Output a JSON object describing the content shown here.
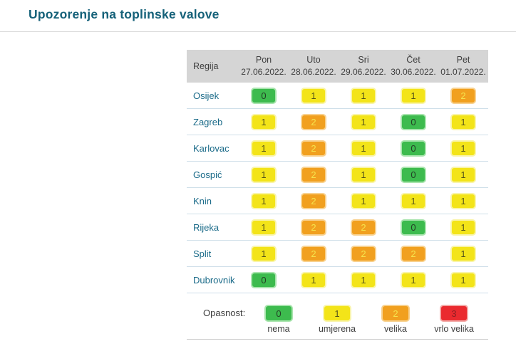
{
  "page": {
    "title": "Upozorenje na toplinske valove"
  },
  "chart_data": {
    "type": "heatmap",
    "title": "Upozorenje na toplinske valove",
    "row_header_label": "Regija",
    "columns": [
      {
        "day": "Pon",
        "date": "27.06.2022."
      },
      {
        "day": "Uto",
        "date": "28.06.2022."
      },
      {
        "day": "Sri",
        "date": "29.06.2022."
      },
      {
        "day": "Čet",
        "date": "30.06.2022."
      },
      {
        "day": "Pet",
        "date": "01.07.2022."
      }
    ],
    "rows": [
      {
        "region": "Osijek",
        "values": [
          0,
          1,
          1,
          1,
          2
        ]
      },
      {
        "region": "Zagreb",
        "values": [
          1,
          2,
          1,
          0,
          1
        ]
      },
      {
        "region": "Karlovac",
        "values": [
          1,
          2,
          1,
          0,
          1
        ]
      },
      {
        "region": "Gospić",
        "values": [
          1,
          2,
          1,
          0,
          1
        ]
      },
      {
        "region": "Knin",
        "values": [
          1,
          2,
          1,
          1,
          1
        ]
      },
      {
        "region": "Rijeka",
        "values": [
          1,
          2,
          2,
          0,
          1
        ]
      },
      {
        "region": "Split",
        "values": [
          1,
          2,
          2,
          2,
          1
        ]
      },
      {
        "region": "Dubrovnik",
        "values": [
          0,
          1,
          1,
          1,
          1
        ]
      }
    ],
    "legend": {
      "label": "Opasnost:",
      "items": [
        {
          "value": 0,
          "label": "nema"
        },
        {
          "value": 1,
          "label": "umjerena"
        },
        {
          "value": 2,
          "label": "velika"
        },
        {
          "value": 3,
          "label": "vrlo velika"
        }
      ]
    },
    "level_colors": {
      "0": {
        "bg": "#3dbb4e",
        "border": "#a8e4ad",
        "meaning": "nema"
      },
      "1": {
        "bg": "#f3e419",
        "border": "#f9f4a8",
        "meaning": "umjerena"
      },
      "2": {
        "bg": "#f1a01f",
        "border": "#f8d18e",
        "meaning": "velika"
      },
      "3": {
        "bg": "#ea2a2f",
        "border": "#f3a9a6",
        "meaning": "vrlo velika"
      }
    }
  },
  "colors": {
    "title_text": "#156179",
    "region_link_text": "#1b6b89",
    "header_background": "#d5d5d5",
    "row_separator": "#cfdfe9"
  }
}
